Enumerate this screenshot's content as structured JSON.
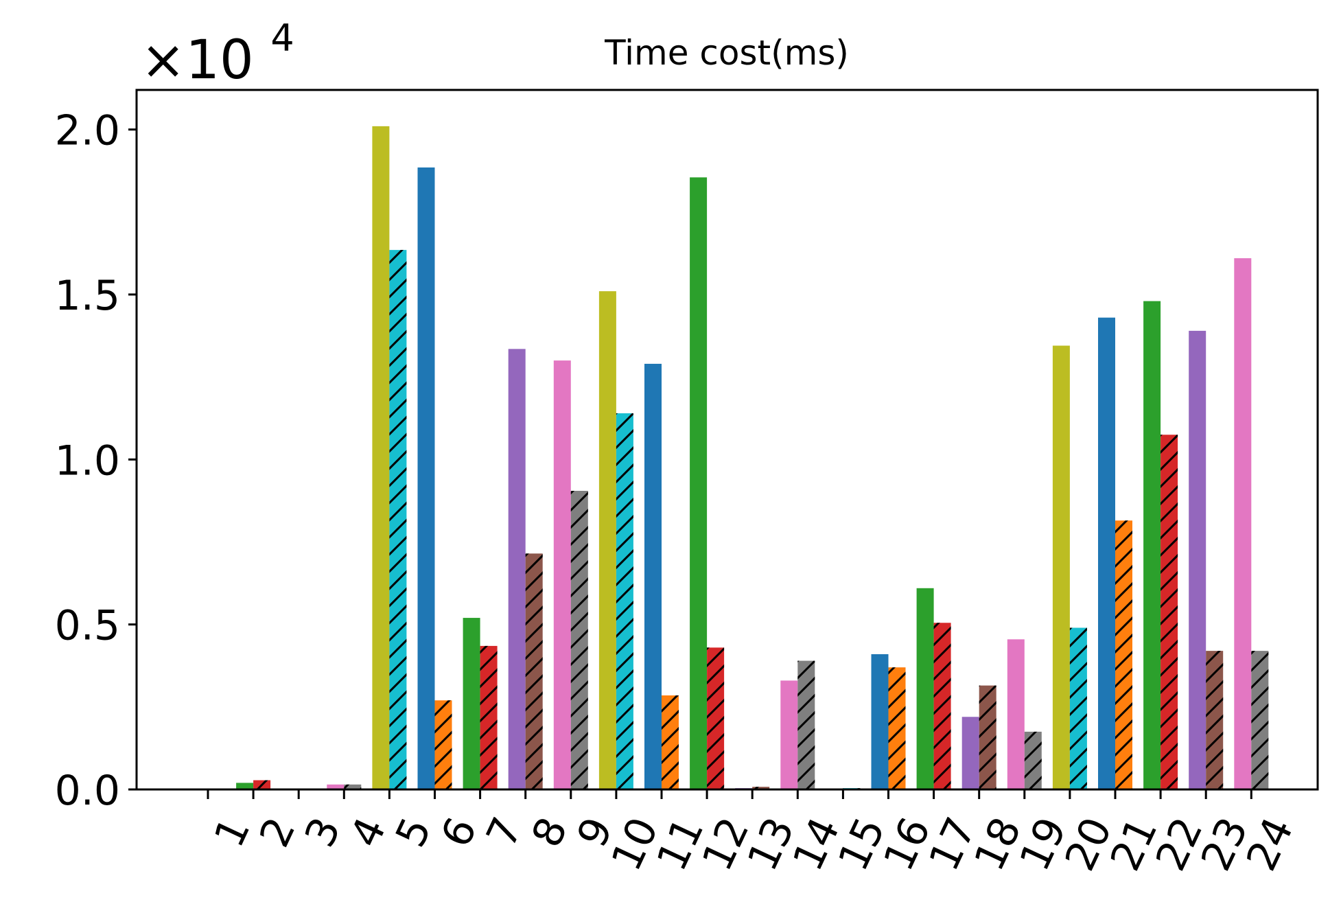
{
  "chart_data": {
    "type": "bar",
    "title": "Time cost(ms)",
    "offset_label": {
      "base": "×10",
      "exponent": "4"
    },
    "xlabel": "",
    "ylabel": "",
    "ylim": [
      0,
      2.12
    ],
    "y_ticks": [
      "0.0",
      "0.5",
      "1.0",
      "1.5",
      "2.0"
    ],
    "y_tick_values": [
      0,
      0.5,
      1.0,
      1.5,
      2.0
    ],
    "categories": [
      "1",
      "2",
      "3",
      "4",
      "5",
      "6",
      "7",
      "8",
      "9",
      "10",
      "11",
      "12",
      "13",
      "14",
      "15",
      "16",
      "17",
      "18",
      "19",
      "20",
      "21",
      "22",
      "23",
      "24"
    ],
    "colors": [
      "#1f77b4",
      "#ff7f0e",
      "#2ca02c",
      "#d62728",
      "#9467bd",
      "#8c564b",
      "#e377c2",
      "#7f7f7f",
      "#bcbd22",
      "#17becf"
    ],
    "hatch_pattern": "//",
    "bars": [
      {
        "category": "1",
        "left": {
          "value": 0.0,
          "color": "#9467bd"
        },
        "right": {
          "value": 0.0,
          "color": "#8c564b",
          "hatched": true
        }
      },
      {
        "category": "2",
        "left": {
          "value": 0.02,
          "color": "#2ca02c"
        },
        "right": {
          "value": 0.028,
          "color": "#d62728",
          "hatched": true
        }
      },
      {
        "category": "3",
        "left": {
          "value": 0.0,
          "color": "#1f77b4"
        },
        "right": {
          "value": 0.0,
          "color": "#ff7f0e",
          "hatched": true
        }
      },
      {
        "category": "4",
        "left": {
          "value": 0.015,
          "color": "#e377c2"
        },
        "right": {
          "value": 0.015,
          "color": "#7f7f7f",
          "hatched": true
        }
      },
      {
        "category": "5",
        "left": {
          "value": 2.01,
          "color": "#bcbd22"
        },
        "right": {
          "value": 1.635,
          "color": "#17becf",
          "hatched": true
        }
      },
      {
        "category": "6",
        "left": {
          "value": 1.885,
          "color": "#1f77b4"
        },
        "right": {
          "value": 0.27,
          "color": "#ff7f0e",
          "hatched": true
        }
      },
      {
        "category": "7",
        "left": {
          "value": 0.52,
          "color": "#2ca02c"
        },
        "right": {
          "value": 0.435,
          "color": "#d62728",
          "hatched": true
        }
      },
      {
        "category": "8",
        "left": {
          "value": 1.335,
          "color": "#9467bd"
        },
        "right": {
          "value": 0.715,
          "color": "#8c564b",
          "hatched": true
        }
      },
      {
        "category": "9",
        "left": {
          "value": 1.3,
          "color": "#e377c2"
        },
        "right": {
          "value": 0.905,
          "color": "#7f7f7f",
          "hatched": true
        }
      },
      {
        "category": "10",
        "left": {
          "value": 1.51,
          "color": "#bcbd22"
        },
        "right": {
          "value": 1.14,
          "color": "#17becf",
          "hatched": true
        }
      },
      {
        "category": "11",
        "left": {
          "value": 1.29,
          "color": "#1f77b4"
        },
        "right": {
          "value": 0.285,
          "color": "#ff7f0e",
          "hatched": true
        }
      },
      {
        "category": "12",
        "left": {
          "value": 1.855,
          "color": "#2ca02c"
        },
        "right": {
          "value": 0.43,
          "color": "#d62728",
          "hatched": true
        }
      },
      {
        "category": "13",
        "left": {
          "value": 0.004,
          "color": "#9467bd"
        },
        "right": {
          "value": 0.008,
          "color": "#8c564b",
          "hatched": true
        }
      },
      {
        "category": "14",
        "left": {
          "value": 0.33,
          "color": "#e377c2"
        },
        "right": {
          "value": 0.39,
          "color": "#7f7f7f",
          "hatched": true
        }
      },
      {
        "category": "15",
        "left": {
          "value": 0.002,
          "color": "#bcbd22"
        },
        "right": {
          "value": 0.004,
          "color": "#17becf",
          "hatched": true
        }
      },
      {
        "category": "16",
        "left": {
          "value": 0.41,
          "color": "#1f77b4"
        },
        "right": {
          "value": 0.37,
          "color": "#ff7f0e",
          "hatched": true
        }
      },
      {
        "category": "17",
        "left": {
          "value": 0.61,
          "color": "#2ca02c"
        },
        "right": {
          "value": 0.505,
          "color": "#d62728",
          "hatched": true
        }
      },
      {
        "category": "18",
        "left": {
          "value": 0.22,
          "color": "#9467bd"
        },
        "right": {
          "value": 0.315,
          "color": "#8c564b",
          "hatched": true
        }
      },
      {
        "category": "19",
        "left": {
          "value": 0.455,
          "color": "#e377c2"
        },
        "right": {
          "value": 0.175,
          "color": "#7f7f7f",
          "hatched": true
        }
      },
      {
        "category": "20",
        "left": {
          "value": 1.345,
          "color": "#bcbd22"
        },
        "right": {
          "value": 0.49,
          "color": "#17becf",
          "hatched": true
        }
      },
      {
        "category": "21",
        "left": {
          "value": 1.43,
          "color": "#1f77b4"
        },
        "right": {
          "value": 0.815,
          "color": "#ff7f0e",
          "hatched": true
        }
      },
      {
        "category": "22",
        "left": {
          "value": 1.48,
          "color": "#2ca02c"
        },
        "right": {
          "value": 1.075,
          "color": "#d62728",
          "hatched": true
        }
      },
      {
        "category": "23",
        "left": {
          "value": 1.39,
          "color": "#9467bd"
        },
        "right": {
          "value": 0.42,
          "color": "#8c564b",
          "hatched": true
        }
      },
      {
        "category": "24",
        "left": {
          "value": 1.61,
          "color": "#e377c2"
        },
        "right": {
          "value": 0.42,
          "color": "#7f7f7f",
          "hatched": true
        }
      }
    ],
    "grid": false,
    "legend": "none"
  }
}
